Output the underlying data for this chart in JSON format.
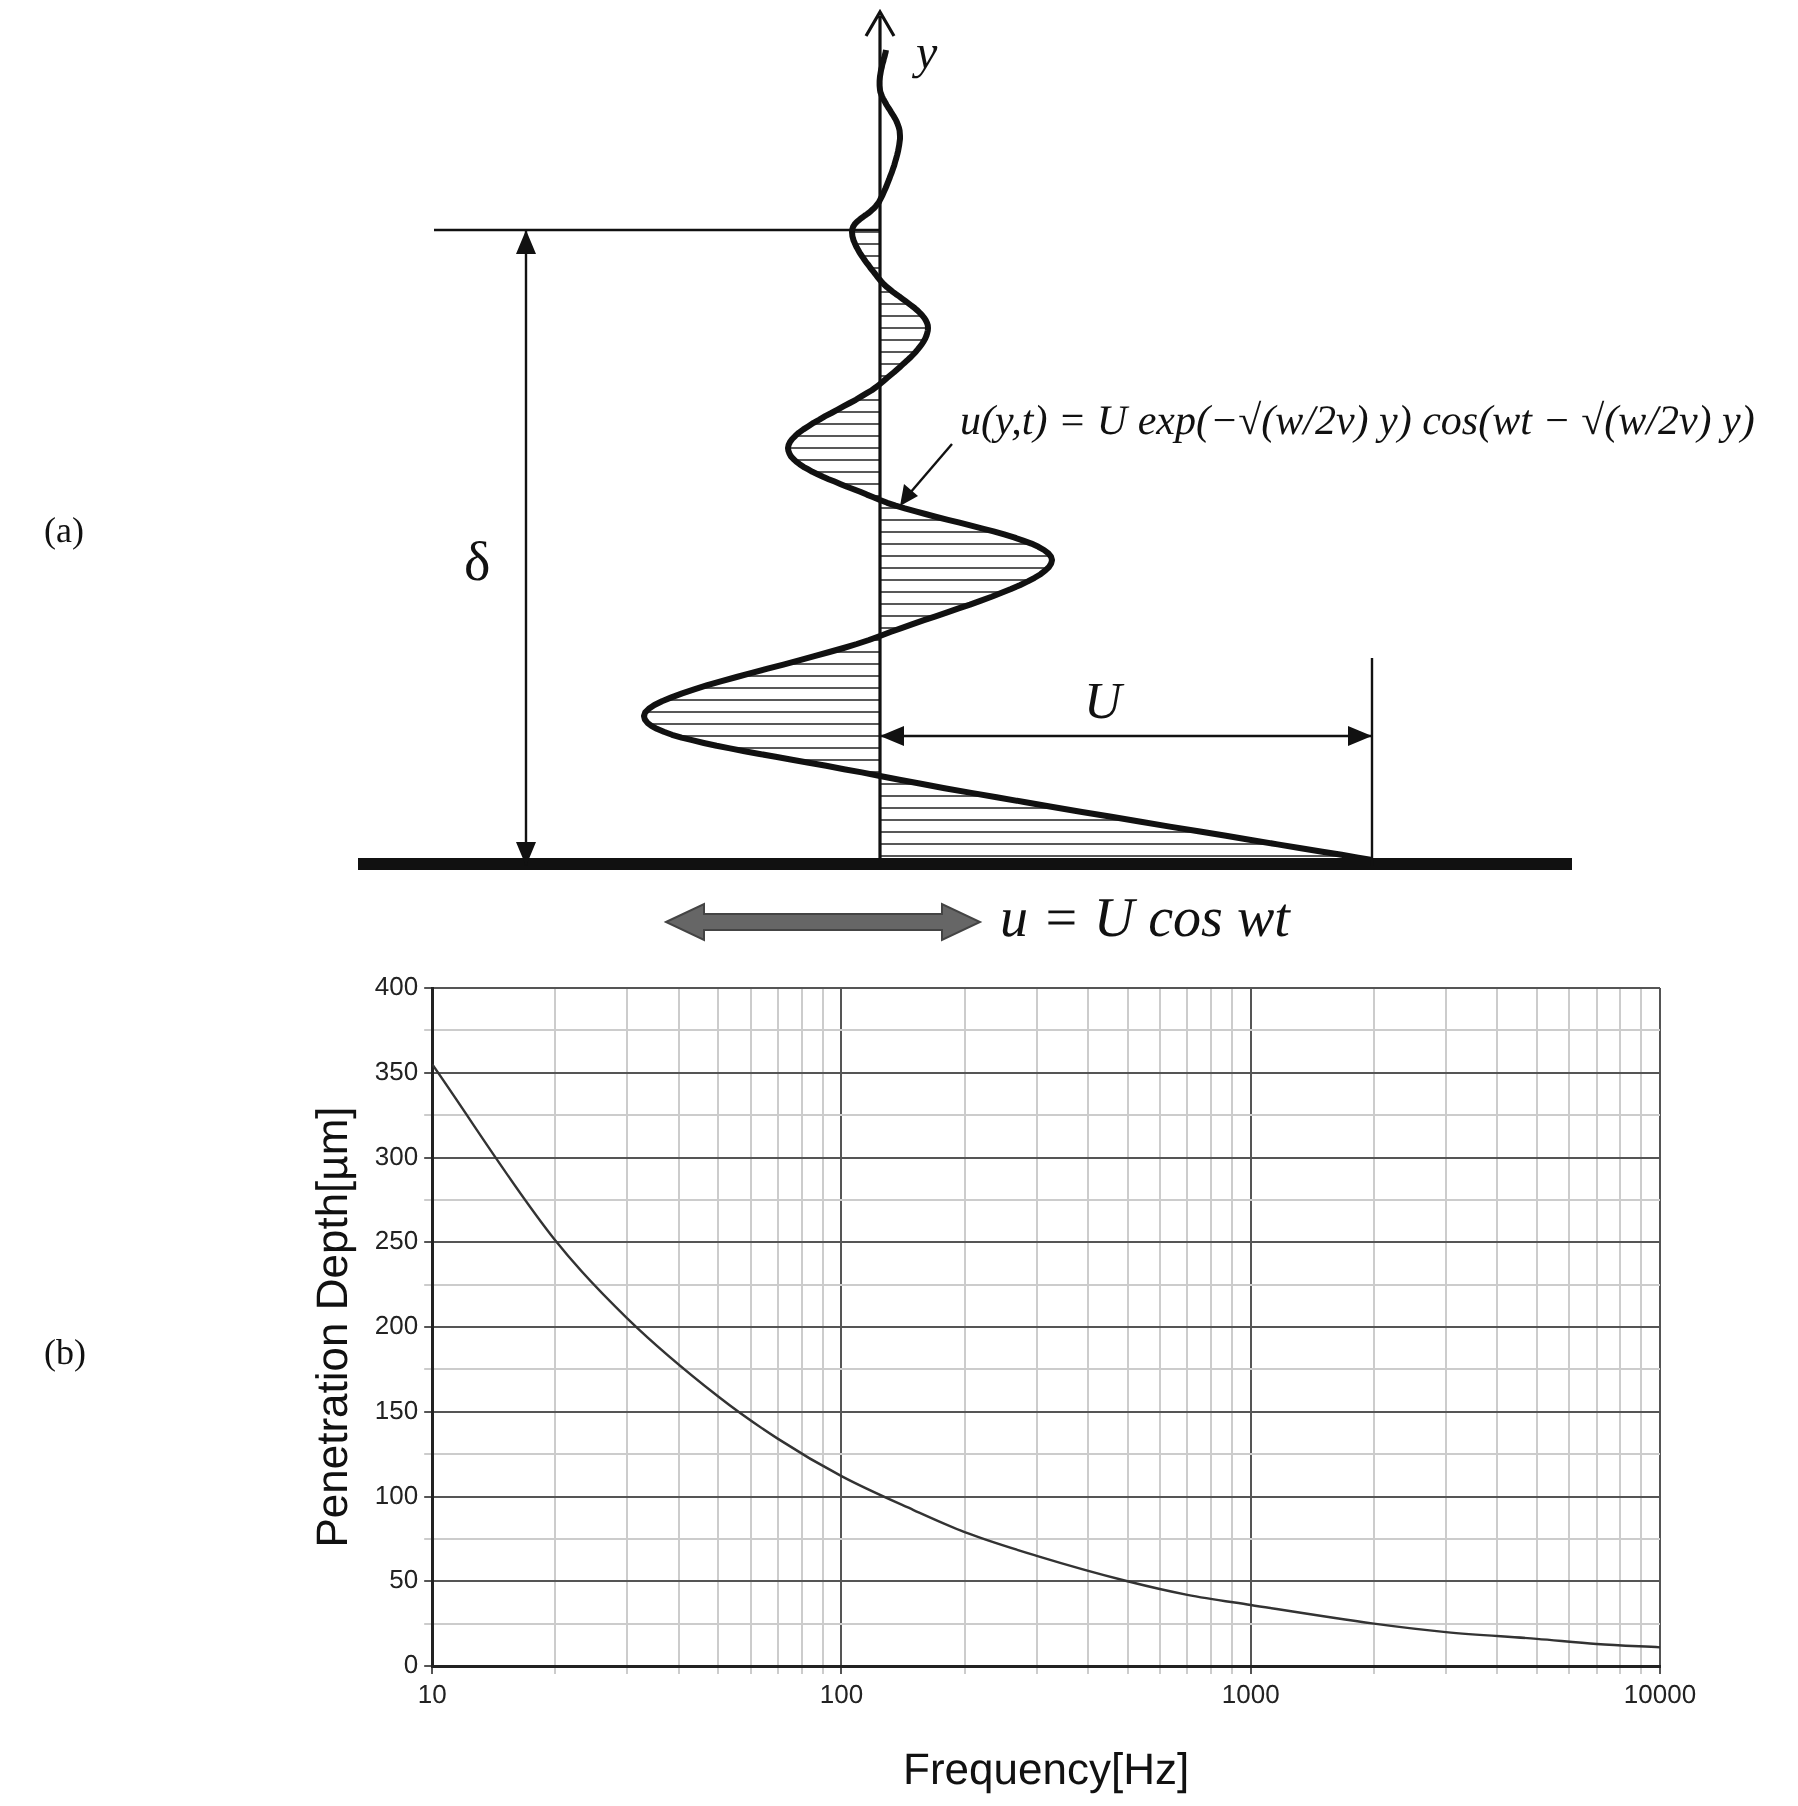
{
  "chart_data": {
    "type": "line",
    "xlabel": "Frequency[Hz]",
    "ylabel": "Penetration Depth[µm]",
    "annotations": [
      "(a)",
      "(b)",
      "y",
      "δ",
      "U",
      "u(y,t) = U exp(−√(w/2v) y) cos(wt − √(w/2v) y)",
      "u = U cos wt"
    ],
    "x": [
      10,
      20,
      30,
      50,
      70,
      100,
      150,
      200,
      300,
      500,
      700,
      1000,
      2000,
      3000,
      5000,
      7000,
      10000
    ],
    "series": [
      {
        "color": "#333333",
        "values": [
          355,
          251,
          205,
          159,
          134,
          112,
          92,
          79,
          65,
          50,
          42,
          36,
          25,
          20,
          16,
          13,
          11
        ]
      }
    ],
    "log": "x",
    "xlim": [
      10,
      10000
    ],
    "xticks": [
      10,
      {
        "value": 20,
        "label": null
      },
      {
        "value": 30,
        "label": null
      },
      {
        "value": 40,
        "label": null
      },
      {
        "value": 50,
        "label": null
      },
      {
        "value": 60,
        "label": null
      },
      {
        "value": 70,
        "label": null
      },
      {
        "value": 80,
        "label": null
      },
      {
        "value": 90,
        "label": null
      },
      100,
      {
        "value": 200,
        "label": null
      },
      {
        "value": 300,
        "label": null
      },
      {
        "value": 400,
        "label": null
      },
      {
        "value": 500,
        "label": null
      },
      {
        "value": 600,
        "label": null
      },
      {
        "value": 700,
        "label": null
      },
      {
        "value": 800,
        "label": null
      },
      {
        "value": 900,
        "label": null
      },
      1000,
      {
        "value": 2000,
        "label": null
      },
      {
        "value": 3000,
        "label": null
      },
      {
        "value": 4000,
        "label": null
      },
      {
        "value": 5000,
        "label": null
      },
      {
        "value": 6000,
        "label": null
      },
      {
        "value": 7000,
        "label": null
      },
      {
        "value": 8000,
        "label": null
      },
      {
        "value": 9000,
        "label": null
      },
      10000
    ],
    "ylim": [
      0,
      400
    ],
    "yticks": [
      0,
      {
        "value": 25,
        "label": null
      },
      50,
      {
        "value": 75,
        "label": null
      },
      100,
      {
        "value": 125,
        "label": null
      },
      150,
      {
        "value": 175,
        "label": null
      },
      200,
      {
        "value": 225,
        "label": null
      },
      250,
      {
        "value": 275,
        "label": null
      },
      300,
      {
        "value": 325,
        "label": null
      },
      350,
      {
        "value": 375,
        "label": null
      },
      400
    ],
    "grid": true,
    "legend": false,
    "marker": "none",
    "line_style": "solid"
  }
}
